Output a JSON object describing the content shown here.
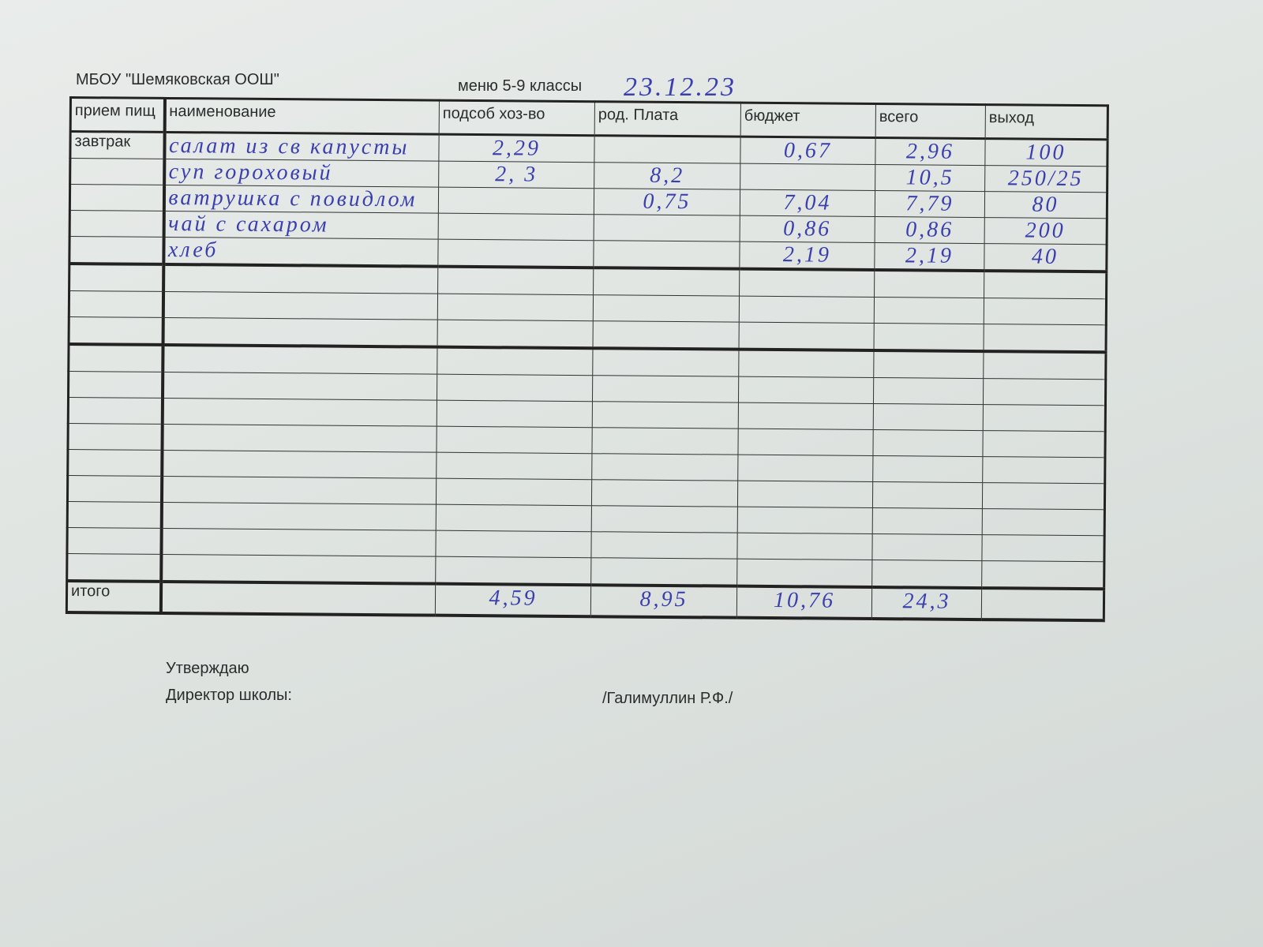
{
  "header": {
    "school": "МБОУ \"Шемяковская ООШ\"",
    "menu_label": "меню 5-9 классы",
    "date": "23.12.23"
  },
  "table": {
    "columns": [
      "прием пищ",
      "наименование",
      "подсоб хоз-во",
      "род. Плата",
      "бюджет",
      "всего",
      "выход"
    ],
    "meal": "завтрак",
    "rows": [
      {
        "name": "салат из св капусты",
        "farm": "2,29",
        "parent": "",
        "budget": "0,67",
        "total": "2,96",
        "yield": "100"
      },
      {
        "name": "суп гороховый",
        "farm": "2, 3",
        "parent": "8,2",
        "budget": "",
        "total": "10,5",
        "yield": "250/25"
      },
      {
        "name": "ватрушка с повидлом",
        "farm": "",
        "parent": "0,75",
        "budget": "7,04",
        "total": "7,79",
        "yield": "80"
      },
      {
        "name": "чай с сахаром",
        "farm": "",
        "parent": "",
        "budget": "0,86",
        "total": "0,86",
        "yield": "200"
      },
      {
        "name": "хлеб",
        "farm": "",
        "parent": "",
        "budget": "2,19",
        "total": "2,19",
        "yield": "40"
      }
    ],
    "total_label": "итого",
    "totals": {
      "farm": "4,59",
      "parent": "8,95",
      "budget": "10,76",
      "total": "24,3",
      "yield": ""
    }
  },
  "footer": {
    "approve": "Утверждаю",
    "director": "Директор школы:",
    "signee": "/Галимуллин Р.Ф./"
  }
}
